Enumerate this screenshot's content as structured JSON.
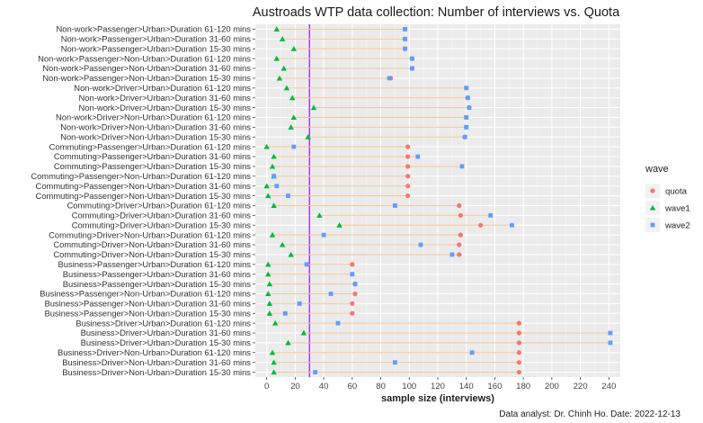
{
  "chart_data": {
    "type": "scatter",
    "title": "Austroads WTP data collection: Number of interviews vs. Quota",
    "xlabel": "sample size (interviews)",
    "ylabel": "",
    "xlim": [
      -8,
      248
    ],
    "xticks": [
      0,
      20,
      40,
      60,
      80,
      100,
      120,
      140,
      160,
      180,
      200,
      220,
      240
    ],
    "reference_line_x": 30,
    "reference_line_color": "#a020f0",
    "grid": true,
    "legend": {
      "title": "wave",
      "position": "right"
    },
    "caption": "Data analyst: Dr. Chinh Ho. Date: 2022-12-13",
    "categories": [
      "Non-work>Passenger>Urban>Duration 61-120 mins",
      "Non-work>Passenger>Urban>Duration 31-60 mins",
      "Non-work>Passenger>Urban>Duration 15-30 mins",
      "Non-work>Passenger>Non-Urban>Duration 61-120 mins",
      "Non-work>Passenger>Non-Urban>Duration 31-60 mins",
      "Non-work>Passenger>Non-Urban>Duration 15-30 mins",
      "Non-work>Driver>Urban>Duration 61-120 mins",
      "Non-work>Driver>Urban>Duration 31-60 mins",
      "Non-work>Driver>Urban>Duration 15-30 mins",
      "Non-work>Driver>Non-Urban>Duration 61-120 mins",
      "Non-work>Driver>Non-Urban>Duration 31-60 mins",
      "Non-work>Driver>Non-Urban>Duration 15-30 mins",
      "Commuting>Passenger>Urban>Duration 61-120 mins",
      "Commuting>Passenger>Urban>Duration 31-60 mins",
      "Commuting>Passenger>Urban>Duration 15-30 mins",
      "Commuting>Passenger>Non-Urban>Duration 61-120 mins",
      "Commuting>Passenger>Non-Urban>Duration 31-60 mins",
      "Commuting>Passenger>Non-Urban>Duration 15-30 mins",
      "Commuting>Driver>Urban>Duration 61-120 mins",
      "Commuting>Driver>Urban>Duration 31-60 mins",
      "Commuting>Driver>Urban>Duration 15-30 mins",
      "Commuting>Driver>Non-Urban>Duration 61-120 mins",
      "Commuting>Driver>Non-Urban>Duration 31-60 mins",
      "Commuting>Driver>Non-Urban>Duration 15-30 mins",
      "Business>Passenger>Urban>Duration 61-120 mins",
      "Business>Passenger>Urban>Duration 31-60 mins",
      "Business>Passenger>Urban>Duration 15-30 mins",
      "Business>Passenger>Non-Urban>Duration 61-120 mins",
      "Business>Passenger>Non-Urban>Duration 31-60 mins",
      "Business>Passenger>Non-Urban>Duration 15-30 mins",
      "Business>Driver>Urban>Duration 61-120 mins",
      "Business>Driver>Urban>Duration 31-60 mins",
      "Business>Driver>Urban>Duration 15-30 mins",
      "Business>Driver>Non-Urban>Duration 61-120 mins",
      "Business>Driver>Non-Urban>Duration 31-60 mins",
      "Business>Driver>Non-Urban>Duration 15-30 mins"
    ],
    "series": [
      {
        "name": "quota",
        "color": "#f8766d",
        "marker": "circle",
        "values": [
          97,
          97,
          97,
          102,
          102,
          87,
          140,
          141,
          142,
          140,
          140,
          139,
          99,
          99,
          99,
          99,
          99,
          99,
          135,
          136,
          150,
          136,
          135,
          135,
          60,
          60,
          62,
          62,
          60,
          60,
          177,
          177,
          177,
          177,
          177,
          177
        ]
      },
      {
        "name": "wave1",
        "color": "#00ba38",
        "marker": "triangle",
        "values": [
          7,
          11,
          19,
          7,
          12,
          9,
          14,
          18,
          33,
          19,
          17,
          29,
          0,
          5,
          4,
          5,
          0,
          1,
          5,
          37,
          51,
          4,
          11,
          17,
          1,
          1,
          2,
          1,
          2,
          2,
          6,
          26,
          15,
          4,
          5,
          5
        ]
      },
      {
        "name": "wave2",
        "color": "#619cff",
        "marker": "square",
        "values": [
          97,
          97,
          97,
          102,
          102,
          86,
          140,
          141,
          142,
          140,
          140,
          139,
          19,
          106,
          137,
          5,
          7,
          15,
          90,
          157,
          172,
          40,
          108,
          130,
          28,
          60,
          62,
          45,
          23,
          13,
          50,
          241,
          241,
          144,
          90,
          34
        ]
      }
    ]
  }
}
